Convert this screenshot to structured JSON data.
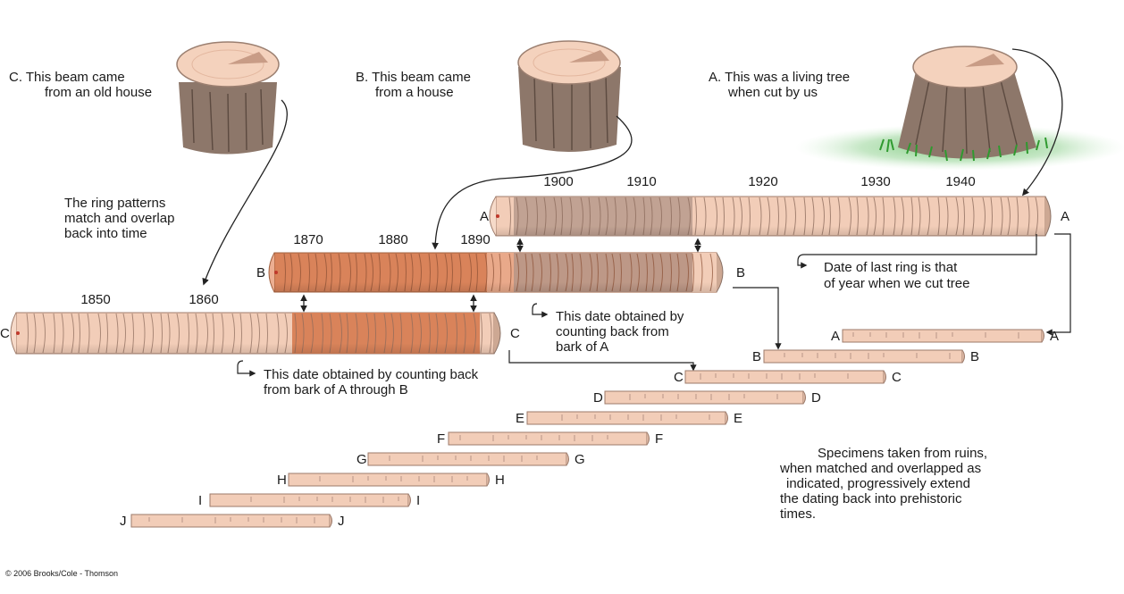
{
  "captions": {
    "c_line1": "C. This beam came",
    "c_line2": "from an old house",
    "b_line1": "B. This beam came",
    "b_line2": "from a house",
    "a_line1": "A. This was a living tree",
    "a_line2": "when cut by us",
    "overlap_line1": "The ring patterns",
    "overlap_line2": "match and overlap",
    "overlap_line3": "back into time",
    "last_ring_line1": "Date of last ring is that",
    "last_ring_line2": "of year when we cut tree",
    "b_date_line1": "This date obtained by",
    "b_date_line2": "counting back from",
    "b_date_line3": "bark of A",
    "c_date_line1": "This date obtained by counting back",
    "c_date_line2": "from bark of A through B",
    "ruins_line1": "Specimens taken from ruins,",
    "ruins_line2": "when matched and overlapped as",
    "ruins_line3": "indicated, progressively extend",
    "ruins_line4": "the dating back into prehistoric",
    "ruins_line5": "times.",
    "copyright": "© 2006 Brooks/Cole - Thomson"
  },
  "years": {
    "a": [
      "1900",
      "1910",
      "1920",
      "1930",
      "1940"
    ],
    "b": [
      "1870",
      "1880",
      "1890"
    ],
    "c": [
      "1850",
      "1860"
    ]
  },
  "beam_labels": {
    "a": "A",
    "b": "B",
    "c": "C"
  },
  "specimens": [
    "A",
    "B",
    "C",
    "D",
    "E",
    "F",
    "G",
    "H",
    "I",
    "J"
  ],
  "colors": {
    "wood_light": "#f2cdb8",
    "wood_dark": "#d9835a",
    "wood_overlap": "#b99a8c",
    "bark": "#8a7266",
    "grass": "#3aa83a"
  }
}
